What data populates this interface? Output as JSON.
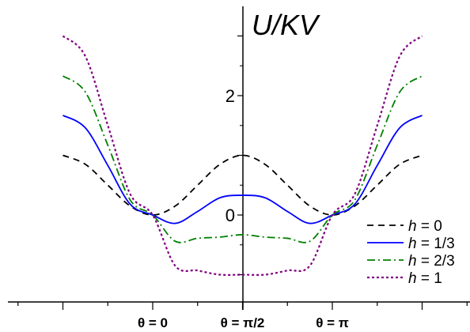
{
  "chart_data": {
    "type": "line",
    "ylabel": "U/KV",
    "x_tick_labels": [
      {
        "x": 0,
        "label": "θ = 0"
      },
      {
        "x": 1.5708,
        "label": "θ = π/2"
      },
      {
        "x": 3.1416,
        "label": "θ = π"
      }
    ],
    "y_tick_labels": [
      "0",
      "2"
    ],
    "xlim": [
      -1.7,
      3.9
    ],
    "ylim": [
      -1.5,
      3.4
    ],
    "series": [
      {
        "name": "h = 0",
        "h": 0,
        "color": "#000000",
        "dash": "8,6",
        "x": [
          -1.571,
          -1.178,
          -0.785,
          -0.393,
          0.0,
          0.393,
          0.785,
          1.178,
          1.571,
          1.963,
          2.356,
          2.749,
          3.142,
          3.534,
          3.927,
          4.32,
          4.712
        ],
        "y": [
          1.0,
          0.85,
          0.5,
          0.15,
          0.0,
          0.15,
          0.5,
          0.85,
          1.0,
          0.85,
          0.5,
          0.15,
          0.0,
          0.15,
          0.5,
          0.85,
          1.0
        ]
      },
      {
        "name": "h = 1/3",
        "h": 0.3333,
        "color": "#0000ff",
        "dash": "",
        "x": [
          -1.571,
          -1.178,
          -0.785,
          -0.393,
          0.0,
          0.393,
          0.785,
          1.178,
          1.571,
          1.963,
          2.356,
          2.749,
          3.142,
          3.534,
          3.927,
          4.32,
          4.712
        ],
        "y": [
          1.67,
          1.46,
          0.83,
          0.18,
          -0.0,
          -0.14,
          0.06,
          0.29,
          0.33,
          0.29,
          0.06,
          -0.14,
          -0.0,
          0.18,
          0.83,
          1.46,
          1.67
        ]
      },
      {
        "name": "h = 2/3",
        "h": 0.6667,
        "color": "#008000",
        "dash": "10,4,2,4",
        "x": [
          -1.571,
          -1.178,
          -0.785,
          -0.393,
          0.0,
          0.393,
          0.785,
          1.178,
          1.571,
          1.963,
          2.356,
          2.749,
          3.142,
          3.534,
          3.927,
          4.32,
          4.712
        ],
        "y": [
          2.33,
          2.06,
          1.17,
          0.25,
          0.0,
          -0.44,
          -0.39,
          -0.37,
          -0.33,
          -0.37,
          -0.39,
          -0.44,
          0.0,
          0.25,
          1.17,
          2.06,
          2.33
        ]
      },
      {
        "name": "h = 1",
        "h": 1,
        "color": "#800080",
        "dash": "3,3",
        "x": [
          -1.571,
          -1.178,
          -0.785,
          -0.393,
          0.0,
          0.393,
          0.785,
          1.178,
          1.571,
          1.963,
          2.356,
          2.749,
          3.142,
          3.534,
          3.927,
          4.32,
          4.712
        ],
        "y": [
          3.0,
          2.66,
          1.5,
          0.35,
          0.0,
          -0.85,
          -0.93,
          -1.0,
          -1.0,
          -1.0,
          -0.93,
          -0.85,
          0.0,
          0.35,
          1.5,
          2.66,
          3.0
        ]
      }
    ],
    "legend_position": "bottom-right",
    "grid": false
  }
}
